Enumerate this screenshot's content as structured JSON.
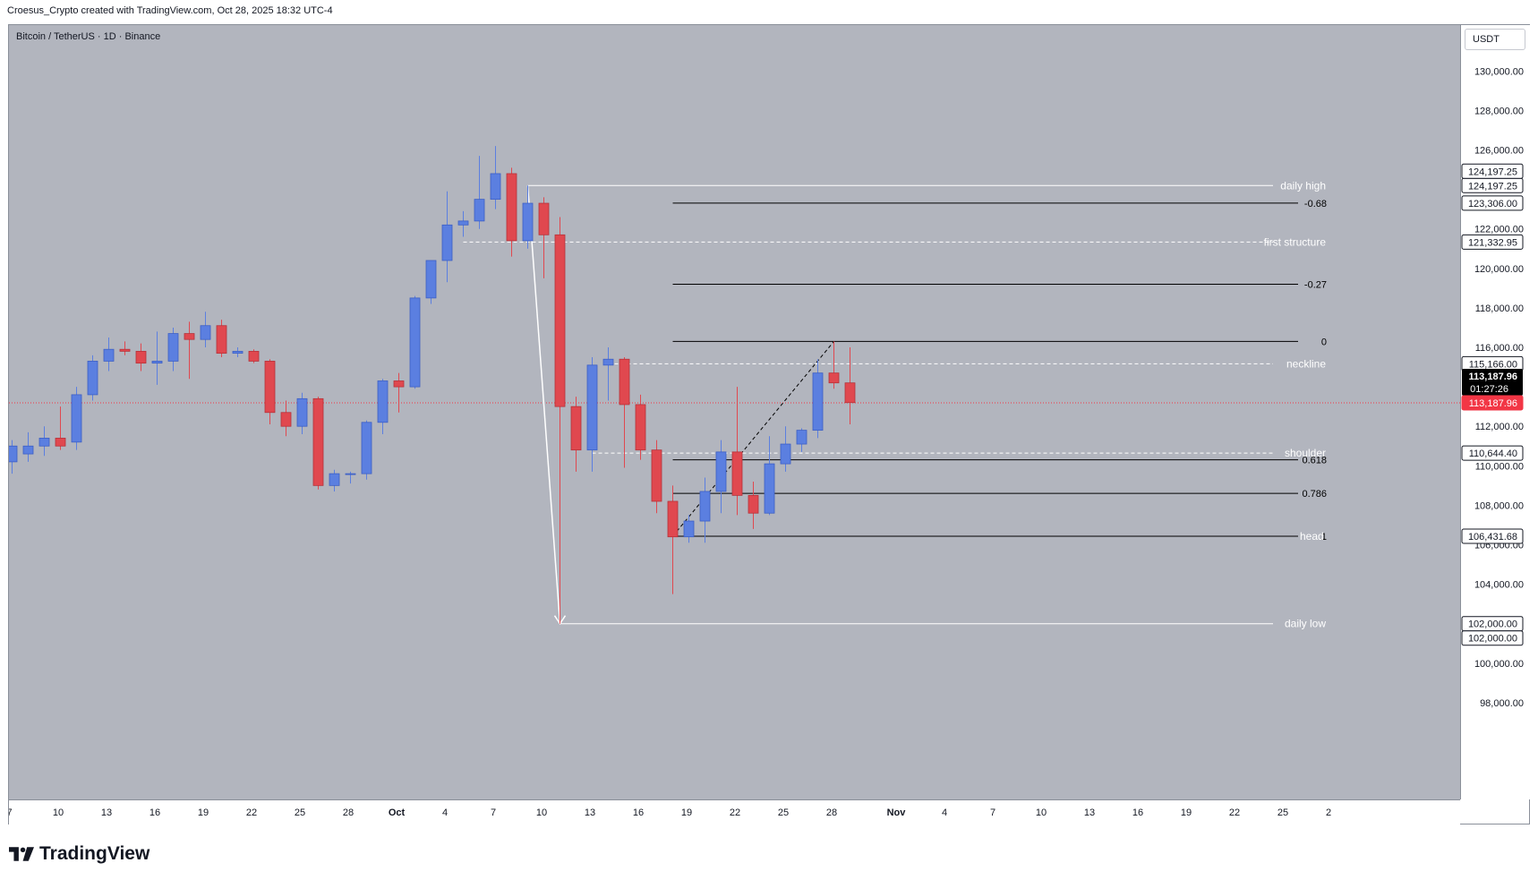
{
  "header": {
    "attribution": "Croesus_Crypto created with TradingView.com, Oct 28, 2025 18:32 UTC-4"
  },
  "symbol": {
    "title": "Bitcoin / TetherUS · 1D · Binance",
    "currency": "USDT"
  },
  "logo": {
    "text": "TradingView"
  },
  "colors": {
    "up": "#5b7fe0",
    "down": "#e0484f",
    "background": "#b2b5be",
    "level_white": "#ffffff",
    "level_black": "#000000",
    "current_price": "#f23645"
  },
  "chart_data": {
    "type": "candlestick",
    "title": "Bitcoin / TetherUS · 1D · Binance",
    "ylim": [
      96000,
      132000
    ],
    "price_ticks": [
      "130,000.00",
      "128,000.00",
      "126,000.00",
      "122,000.00",
      "120,000.00",
      "118,000.00",
      "116,000.00",
      "112,000.00",
      "110,000.00",
      "108,000.00",
      "106,000.00",
      "104,000.00",
      "100,000.00",
      "98,000.00"
    ],
    "time_ticks": [
      "7",
      "10",
      "13",
      "16",
      "19",
      "22",
      "25",
      "28",
      "Oct",
      "4",
      "7",
      "10",
      "13",
      "16",
      "19",
      "22",
      "25",
      "28",
      "Nov",
      "4",
      "7",
      "10",
      "13",
      "16",
      "19",
      "22",
      "25",
      "2"
    ],
    "candles": [
      {
        "date": "Sep 6",
        "o": 110200,
        "h": 111300,
        "l": 109600,
        "c": 111000
      },
      {
        "date": "Sep 7",
        "o": 110600,
        "h": 111700,
        "l": 110200,
        "c": 111000
      },
      {
        "date": "Sep 8",
        "o": 111000,
        "h": 112000,
        "l": 110500,
        "c": 111400
      },
      {
        "date": "Sep 9",
        "o": 111400,
        "h": 113000,
        "l": 110800,
        "c": 111000
      },
      {
        "date": "Sep 10",
        "o": 111200,
        "h": 114000,
        "l": 110800,
        "c": 113600
      },
      {
        "date": "Sep 11",
        "o": 113600,
        "h": 115600,
        "l": 113300,
        "c": 115300
      },
      {
        "date": "Sep 12",
        "o": 115300,
        "h": 116500,
        "l": 114800,
        "c": 115900
      },
      {
        "date": "Sep 13",
        "o": 115900,
        "h": 116300,
        "l": 115600,
        "c": 115800
      },
      {
        "date": "Sep 14",
        "o": 115800,
        "h": 116200,
        "l": 114800,
        "c": 115200
      },
      {
        "date": "Sep 15",
        "o": 115200,
        "h": 116800,
        "l": 114100,
        "c": 115300
      },
      {
        "date": "Sep 16",
        "o": 115300,
        "h": 117000,
        "l": 114800,
        "c": 116700
      },
      {
        "date": "Sep 17",
        "o": 116700,
        "h": 117300,
        "l": 114400,
        "c": 116400
      },
      {
        "date": "Sep 18",
        "o": 116400,
        "h": 117800,
        "l": 116000,
        "c": 117100
      },
      {
        "date": "Sep 19",
        "o": 117100,
        "h": 117400,
        "l": 115500,
        "c": 115700
      },
      {
        "date": "Sep 20",
        "o": 115700,
        "h": 116000,
        "l": 115500,
        "c": 115800
      },
      {
        "date": "Sep 21",
        "o": 115800,
        "h": 115900,
        "l": 115200,
        "c": 115300
      },
      {
        "date": "Sep 22",
        "o": 115300,
        "h": 115400,
        "l": 112100,
        "c": 112700
      },
      {
        "date": "Sep 23",
        "o": 112700,
        "h": 113300,
        "l": 111500,
        "c": 112000
      },
      {
        "date": "Sep 24",
        "o": 112000,
        "h": 113700,
        "l": 111600,
        "c": 113400
      },
      {
        "date": "Sep 25",
        "o": 113400,
        "h": 113500,
        "l": 108800,
        "c": 109000
      },
      {
        "date": "Sep 26",
        "o": 109000,
        "h": 109800,
        "l": 108700,
        "c": 109600
      },
      {
        "date": "Sep 27",
        "o": 109600,
        "h": 109700,
        "l": 109100,
        "c": 109600
      },
      {
        "date": "Sep 28",
        "o": 109600,
        "h": 112300,
        "l": 109300,
        "c": 112200
      },
      {
        "date": "Sep 29",
        "o": 112200,
        "h": 114400,
        "l": 111600,
        "c": 114300
      },
      {
        "date": "Sep 30",
        "o": 114300,
        "h": 114700,
        "l": 112700,
        "c": 114000
      },
      {
        "date": "Oct 1",
        "o": 114000,
        "h": 118600,
        "l": 113900,
        "c": 118500
      },
      {
        "date": "Oct 2",
        "o": 118500,
        "h": 120400,
        "l": 118200,
        "c": 120400
      },
      {
        "date": "Oct 3",
        "o": 120400,
        "h": 123900,
        "l": 119300,
        "c": 122200
      },
      {
        "date": "Oct 4",
        "o": 122200,
        "h": 122900,
        "l": 121600,
        "c": 122400
      },
      {
        "date": "Oct 5",
        "o": 122400,
        "h": 125700,
        "l": 122000,
        "c": 123500
      },
      {
        "date": "Oct 6",
        "o": 123500,
        "h": 126200,
        "l": 123000,
        "c": 124800
      },
      {
        "date": "Oct 7",
        "o": 124800,
        "h": 125100,
        "l": 120600,
        "c": 121400
      },
      {
        "date": "Oct 8",
        "o": 121400,
        "h": 124200,
        "l": 121000,
        "c": 123300
      },
      {
        "date": "Oct 9",
        "o": 123300,
        "h": 123600,
        "l": 119500,
        "c": 121700
      },
      {
        "date": "Oct 10",
        "o": 121700,
        "h": 122600,
        "l": 102000,
        "c": 113000
      },
      {
        "date": "Oct 11",
        "o": 113000,
        "h": 113500,
        "l": 109700,
        "c": 110800
      },
      {
        "date": "Oct 12",
        "o": 110800,
        "h": 115500,
        "l": 109700,
        "c": 115100
      },
      {
        "date": "Oct 13",
        "o": 115100,
        "h": 116000,
        "l": 113300,
        "c": 115400
      },
      {
        "date": "Oct 14",
        "o": 115400,
        "h": 115500,
        "l": 109900,
        "c": 113100
      },
      {
        "date": "Oct 15",
        "o": 113100,
        "h": 113600,
        "l": 110300,
        "c": 110800
      },
      {
        "date": "Oct 16",
        "o": 110800,
        "h": 111300,
        "l": 107600,
        "c": 108200
      },
      {
        "date": "Oct 17",
        "o": 108200,
        "h": 109000,
        "l": 103500,
        "c": 106400
      },
      {
        "date": "Oct 18",
        "o": 106400,
        "h": 107500,
        "l": 106100,
        "c": 107200
      },
      {
        "date": "Oct 19",
        "o": 107200,
        "h": 109400,
        "l": 106100,
        "c": 108700
      },
      {
        "date": "Oct 20",
        "o": 108700,
        "h": 111300,
        "l": 107600,
        "c": 110700
      },
      {
        "date": "Oct 21",
        "o": 110700,
        "h": 114000,
        "l": 107500,
        "c": 108500
      },
      {
        "date": "Oct 22",
        "o": 108500,
        "h": 109200,
        "l": 106800,
        "c": 107600
      },
      {
        "date": "Oct 23",
        "o": 107600,
        "h": 111500,
        "l": 107500,
        "c": 110100
      },
      {
        "date": "Oct 24",
        "o": 110100,
        "h": 112000,
        "l": 109700,
        "c": 111100
      },
      {
        "date": "Oct 25",
        "o": 111100,
        "h": 111900,
        "l": 110700,
        "c": 111800
      },
      {
        "date": "Oct 26",
        "o": 111800,
        "h": 115400,
        "l": 111400,
        "c": 114700
      },
      {
        "date": "Oct 27",
        "o": 114700,
        "h": 116300,
        "l": 113900,
        "c": 114200
      },
      {
        "date": "Oct 28",
        "o": 114200,
        "h": 116000,
        "l": 112100,
        "c": 113200
      }
    ],
    "levels": [
      {
        "label": "daily high",
        "price": 124197.25,
        "badge": "124,197.25",
        "style": "solid",
        "color": "#ffffff",
        "from": "Oct 8"
      },
      {
        "label": "first structure",
        "price": 121332.95,
        "badge": "121,332.95",
        "style": "dashed",
        "color": "#ffffff",
        "from": "Oct 4"
      },
      {
        "label": "neckline",
        "price": 115166.0,
        "badge": "115,166.00",
        "style": "dashed",
        "color": "#ffffff",
        "from": "Oct 13"
      },
      {
        "label": "shoulder",
        "price": 110644.4,
        "badge": "110,644.40",
        "style": "dashed",
        "color": "#ffffff",
        "from": "Oct 12"
      },
      {
        "label": "daily low",
        "price": 102000.0,
        "badge": "102,000.00",
        "style": "solid",
        "color": "#ffffff",
        "from": "Oct 10"
      }
    ],
    "fib_levels": [
      {
        "label": "-0.68",
        "price": 123306.0,
        "badge": "123,306.00"
      },
      {
        "label": "-0.27",
        "price": 119200.0,
        "badge": ""
      },
      {
        "label": "0",
        "price": 116300.0,
        "badge": ""
      },
      {
        "label": "0.618",
        "price": 110300.0,
        "badge": ""
      },
      {
        "label": "0.786",
        "price": 108600.0,
        "badge": ""
      },
      {
        "label": "1",
        "price": 106431.68,
        "badge": "106,431.68"
      }
    ],
    "head_label": "head",
    "extra_badges": [
      {
        "price": 124197.25,
        "text": "124,197.25",
        "offset": -1
      },
      {
        "price": 102000.0,
        "text": "102,000.00",
        "offset": 1
      }
    ],
    "current_price": {
      "price": 113187.96,
      "text": "113,187.96",
      "countdown": "01:27:26"
    }
  }
}
